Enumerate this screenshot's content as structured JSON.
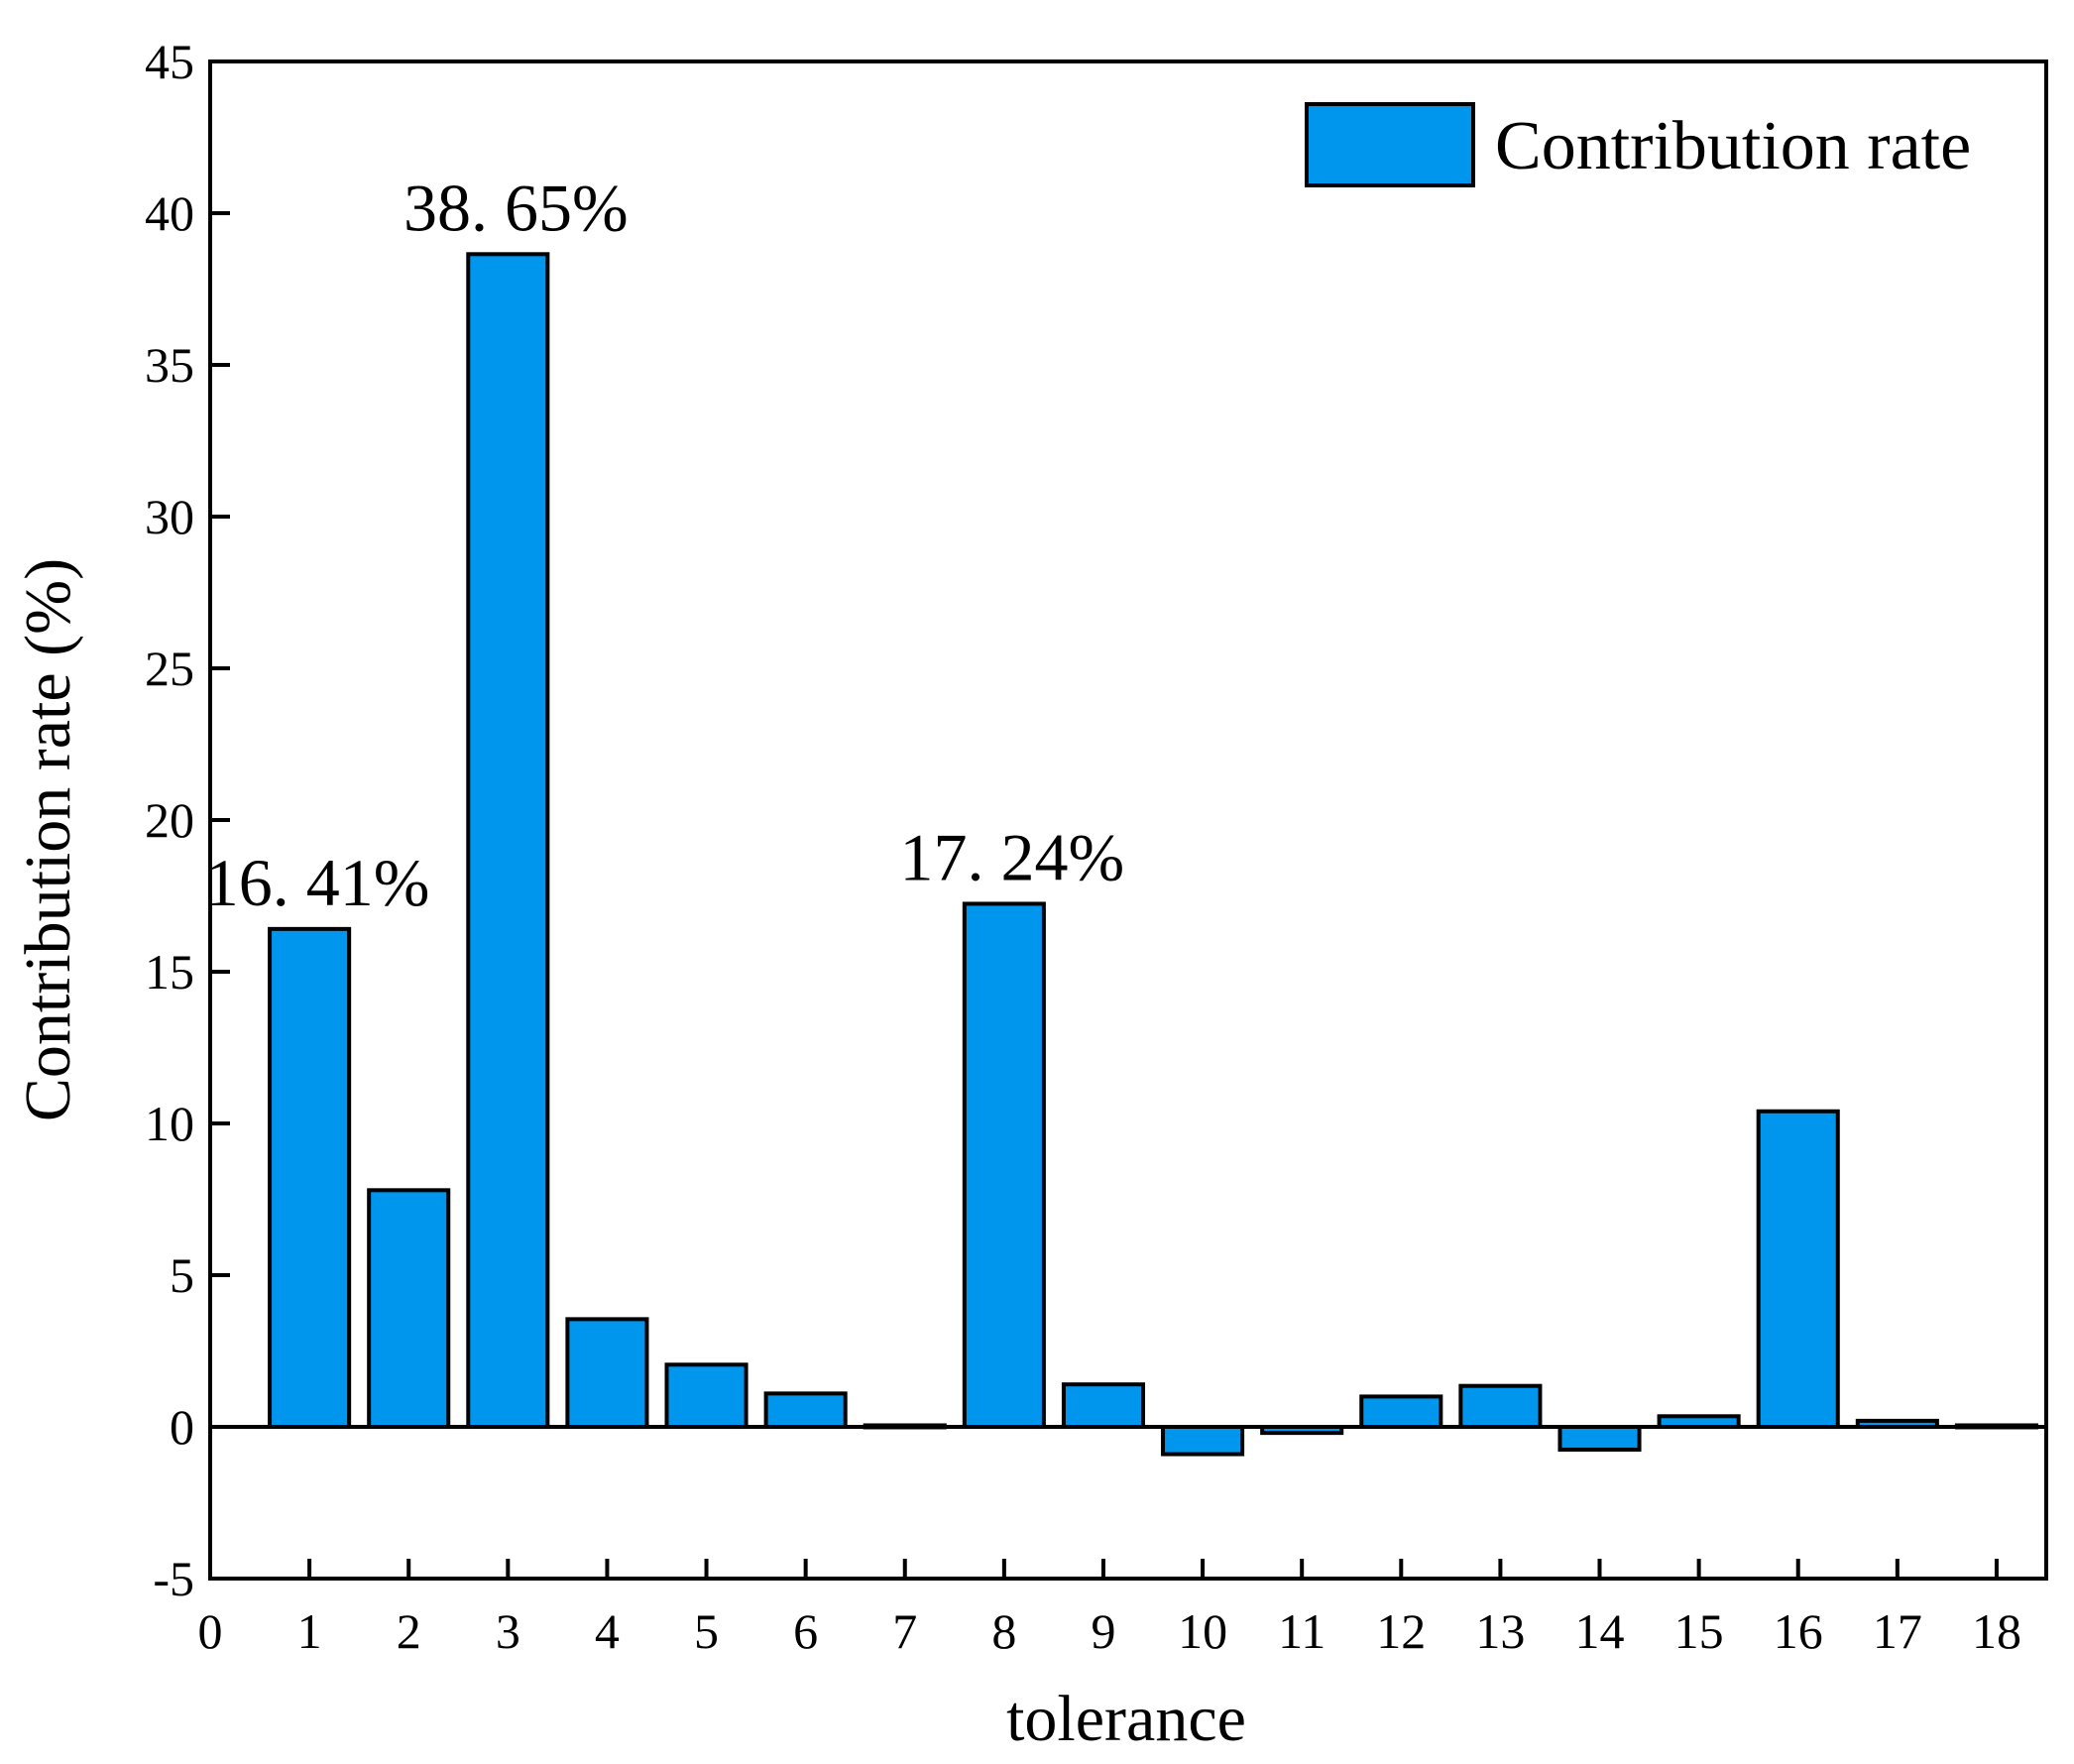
{
  "chart_data": {
    "type": "bar",
    "title": "",
    "xlabel": "tolerance",
    "ylabel": "Contribution rate (%)",
    "xlim": [
      0,
      18.5
    ],
    "ylim": [
      -5,
      45
    ],
    "x_ticks": [
      0,
      1,
      2,
      3,
      4,
      5,
      6,
      7,
      8,
      9,
      10,
      11,
      12,
      13,
      14,
      15,
      16,
      17,
      18
    ],
    "y_ticks": [
      -5,
      0,
      5,
      10,
      15,
      20,
      25,
      30,
      35,
      40,
      45
    ],
    "categories": [
      1,
      2,
      3,
      4,
      5,
      6,
      7,
      8,
      9,
      10,
      11,
      12,
      13,
      14,
      15,
      16,
      17,
      18
    ],
    "series": [
      {
        "name": "Contribution rate",
        "color": "#0096ee",
        "values": [
          16.41,
          7.8,
          38.65,
          3.55,
          2.05,
          1.1,
          0.05,
          17.24,
          1.4,
          -0.9,
          -0.2,
          1.0,
          1.35,
          -0.75,
          0.35,
          10.4,
          0.2,
          0.05
        ]
      }
    ],
    "annotations": [
      {
        "category": 1,
        "text": "16. 41%"
      },
      {
        "category": 3,
        "text": "38. 65%"
      },
      {
        "category": 8,
        "text": "17. 24%"
      }
    ],
    "legend": {
      "position": "top-right",
      "label": "Contribution rate"
    },
    "grid": false
  }
}
